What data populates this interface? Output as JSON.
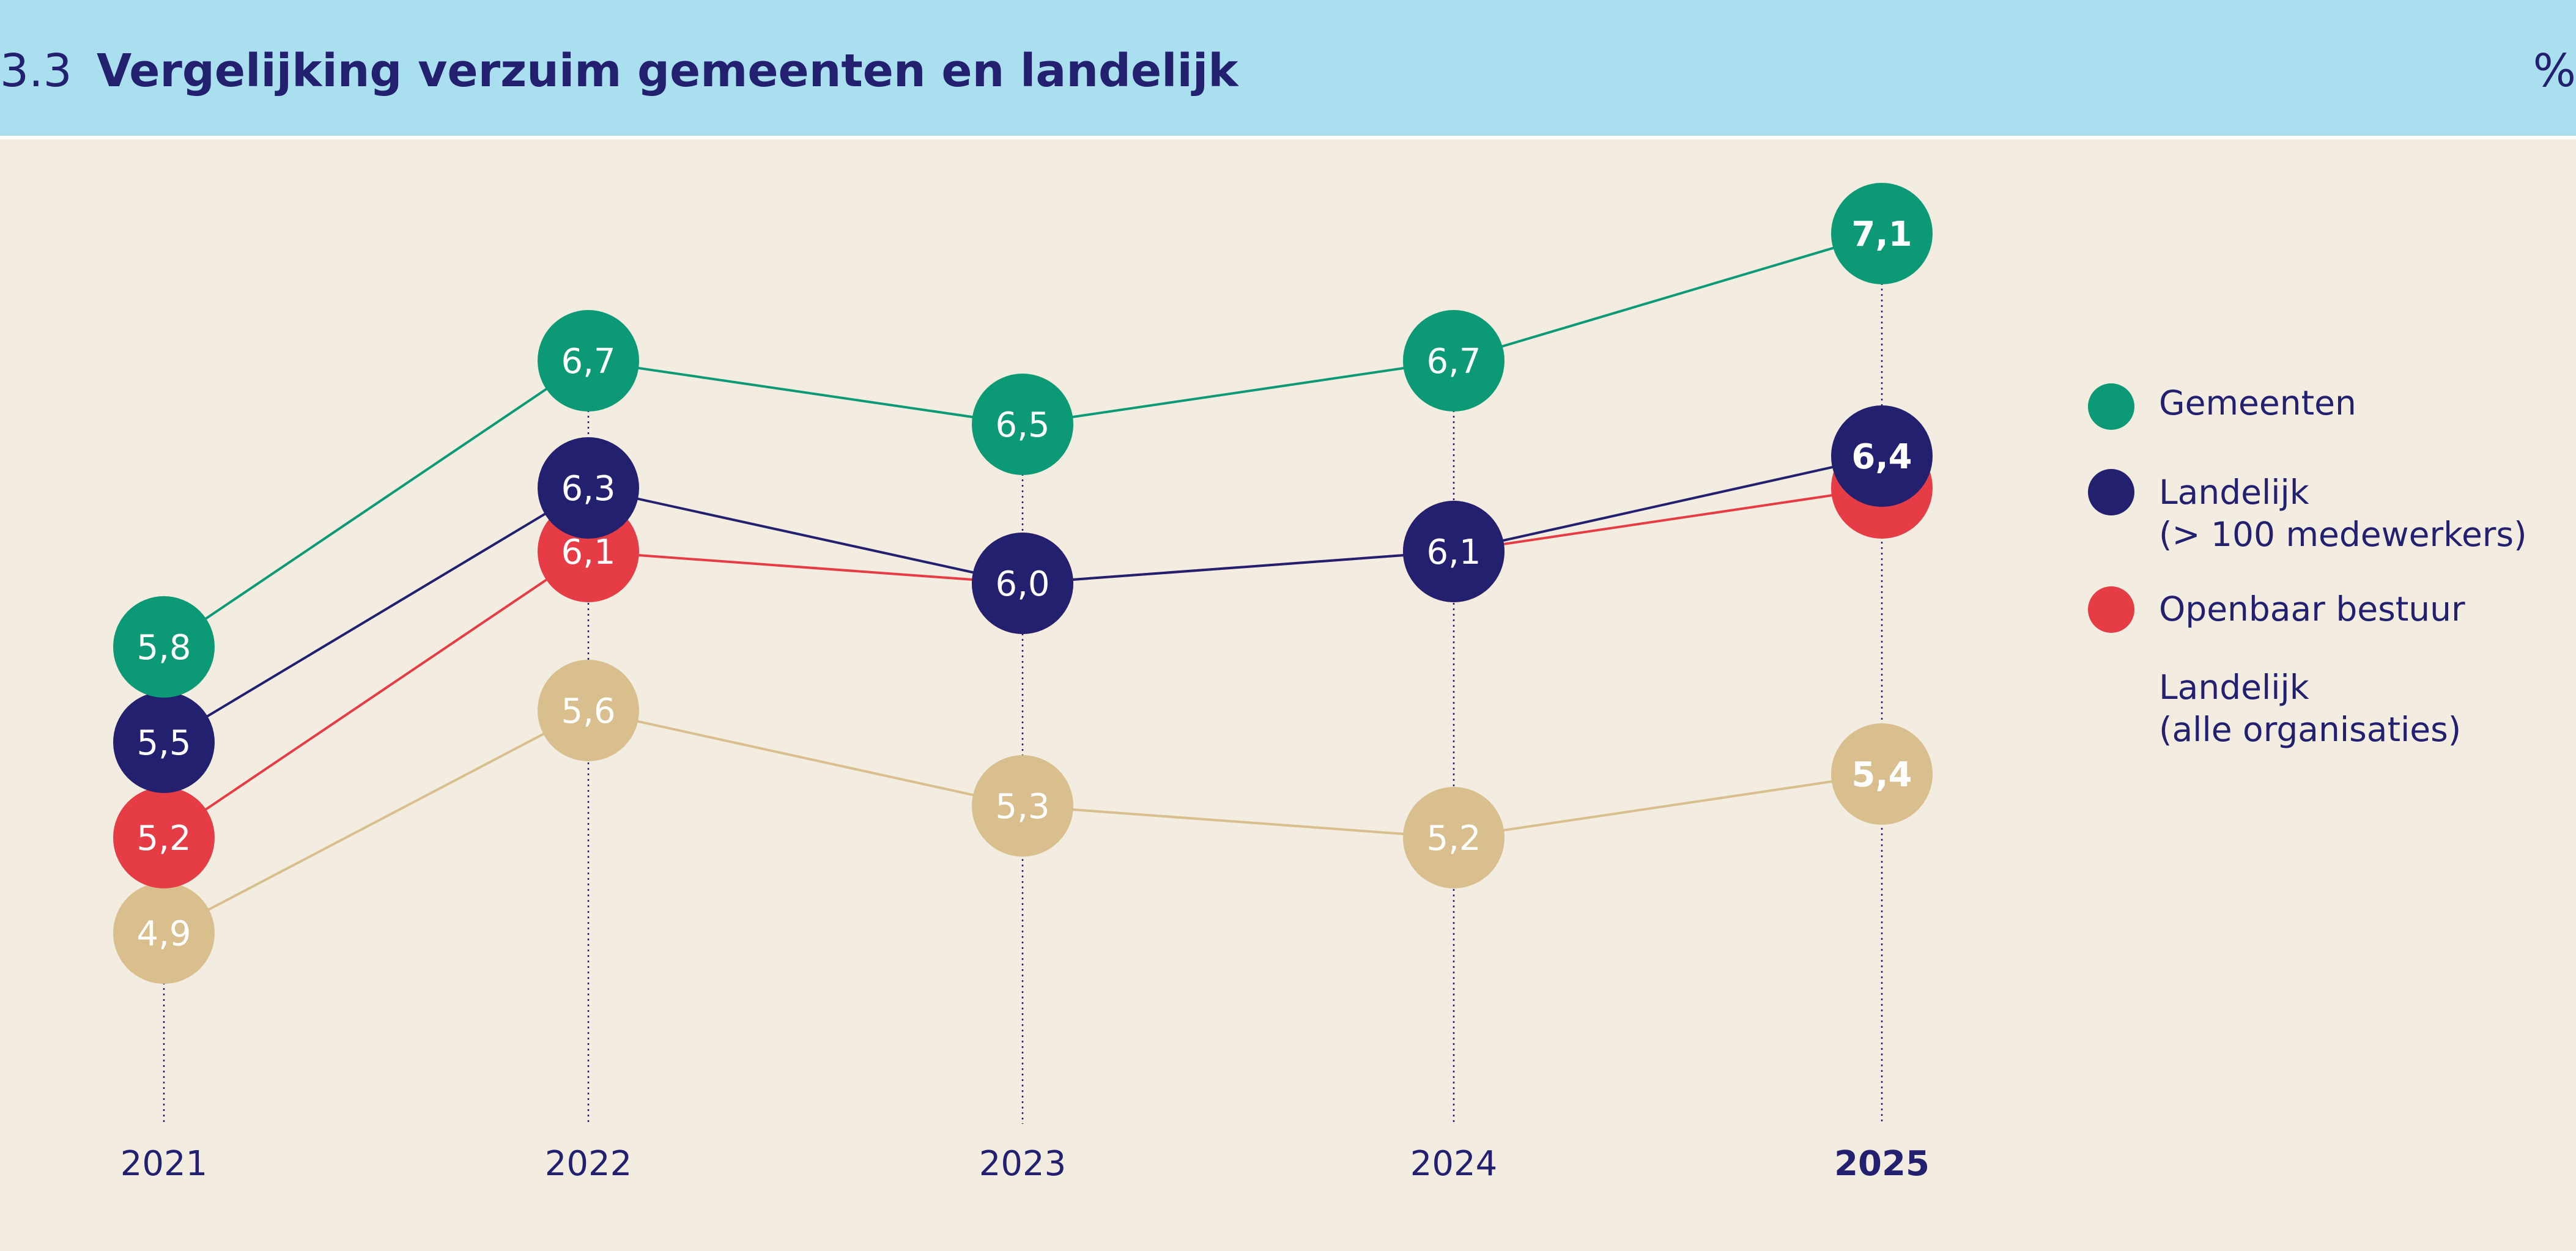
{
  "header": {
    "section_number": "3.3",
    "title": "Vergelijking verzuim gemeenten en landelijk",
    "unit": "%"
  },
  "legend": [
    {
      "line1": "Gemeenten",
      "line2": ""
    },
    {
      "line1": "Landelijk",
      "line2": "(> 100 medewerkers)"
    },
    {
      "line1": "Openbaar bestuur",
      "line2": ""
    },
    {
      "line1": "Landelijk",
      "line2": "(alle organisaties)"
    }
  ],
  "chart_data": {
    "type": "line",
    "title": "Vergelijking verzuim gemeenten en landelijk",
    "unit": "%",
    "categories": [
      "2021",
      "2022",
      "2023",
      "2024",
      "2025"
    ],
    "highlight_category": "2025",
    "ylim": [
      4.5,
      7.5
    ],
    "grid": false,
    "legend_position": "right",
    "series": [
      {
        "name": "Gemeenten",
        "color": "#0B9A75",
        "values": [
          5.8,
          6.7,
          6.5,
          6.7,
          7.1
        ],
        "labels": [
          "5,8",
          "6,7",
          "6,5",
          "6,7",
          "7,1"
        ]
      },
      {
        "name": "Landelijk (> 100 medewerkers)",
        "color": "#232070",
        "values": [
          5.5,
          6.3,
          6.0,
          6.1,
          6.4
        ],
        "labels": [
          "5,5",
          "6,3",
          "6,0",
          "6,1",
          "6,4"
        ]
      },
      {
        "name": "Openbaar bestuur",
        "color": "#E63C46",
        "values": [
          5.2,
          6.1,
          6.0,
          6.1,
          6.3
        ],
        "labels": [
          "5,2",
          "6,1",
          "6,0",
          "6,1",
          "6,3"
        ]
      },
      {
        "name": "Landelijk (alle organisaties)",
        "color": "#D9BF8D",
        "values": [
          4.9,
          5.6,
          5.3,
          5.2,
          5.4
        ],
        "labels": [
          "4,9",
          "5,6",
          "5,3",
          "5,2",
          "5,4"
        ]
      }
    ]
  }
}
